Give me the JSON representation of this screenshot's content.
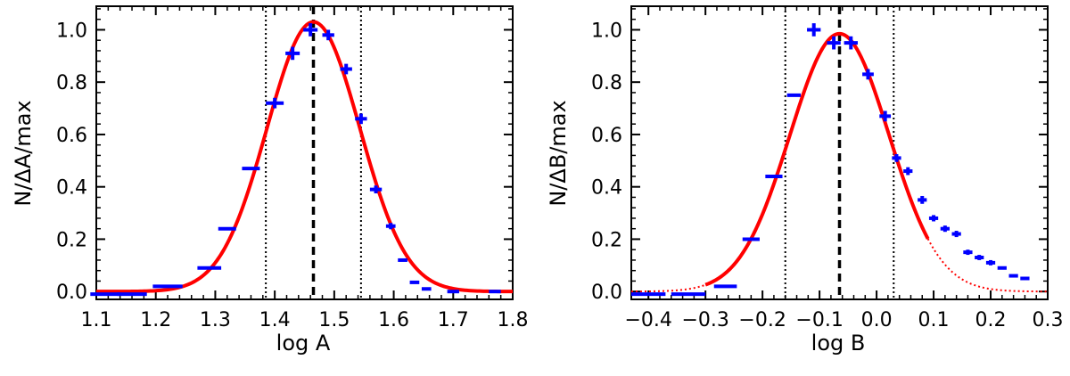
{
  "chart_data": [
    {
      "type": "scatter",
      "xlabel": "log A",
      "ylabel": "N/ΔA/max",
      "xlim": [
        1.1,
        1.8
      ],
      "ylim": [
        -0.03,
        1.09
      ],
      "xticks": [
        "1.1",
        "1.2",
        "1.3",
        "1.4",
        "1.5",
        "1.6",
        "1.7",
        "1.8"
      ],
      "yticks": [
        "0.0",
        "0.2",
        "0.4",
        "0.6",
        "0.8",
        "1.0"
      ],
      "grid": false,
      "colors": {
        "points": "#0000ff",
        "fit": "#ff0000",
        "markers": "#000000"
      },
      "series": [
        {
          "type": "errorbar",
          "x": [
            1.115,
            1.16,
            1.22,
            1.29,
            1.32,
            1.36,
            1.4,
            1.43,
            1.46,
            1.49,
            1.52,
            1.545,
            1.57,
            1.595,
            1.615,
            1.635,
            1.655,
            1.7,
            1.77
          ],
          "y": [
            -0.01,
            -0.01,
            0.02,
            0.09,
            0.24,
            0.47,
            0.72,
            0.91,
            1.0,
            0.98,
            0.85,
            0.66,
            0.39,
            0.25,
            0.12,
            0.035,
            0.01,
            0.0,
            0.0
          ],
          "xerr": [
            0.025,
            0.025,
            0.025,
            0.02,
            0.015,
            0.015,
            0.015,
            0.012,
            0.012,
            0.01,
            0.01,
            0.01,
            0.01,
            0.008,
            0.008,
            0.008,
            0.008,
            0.01,
            0.01
          ],
          "yerr": [
            0,
            0,
            0,
            0,
            0,
            0,
            0.02,
            0.025,
            0.025,
            0.02,
            0.02,
            0.02,
            0.015,
            0.012,
            0,
            0,
            0,
            0,
            0
          ]
        },
        {
          "type": "gaussian_fit",
          "amplitude": 1.03,
          "mean": 1.465,
          "sigma": 0.078,
          "x_range": [
            1.1,
            1.8
          ]
        }
      ],
      "vlines": [
        {
          "x": 1.465,
          "style": "dashed"
        },
        {
          "x": 1.385,
          "style": "dotted"
        },
        {
          "x": 1.545,
          "style": "dotted"
        }
      ]
    },
    {
      "type": "scatter",
      "xlabel": "log B",
      "ylabel": "N/ΔB/max",
      "xlim": [
        -0.43,
        0.3
      ],
      "ylim": [
        -0.03,
        1.09
      ],
      "xticks": [
        "−0.4",
        "−0.3",
        "−0.2",
        "−0.1",
        "0.0",
        "0.1",
        "0.2",
        "0.3"
      ],
      "yticks": [
        "0.0",
        "0.2",
        "0.4",
        "0.6",
        "0.8",
        "1.0"
      ],
      "grid": false,
      "colors": {
        "points": "#0000ff",
        "fit": "#ff0000",
        "markers": "#000000"
      },
      "series": [
        {
          "type": "errorbar",
          "x": [
            -0.4,
            -0.33,
            -0.265,
            -0.22,
            -0.18,
            -0.145,
            -0.11,
            -0.075,
            -0.045,
            -0.015,
            0.015,
            0.035,
            0.055,
            0.08,
            0.1,
            0.12,
            0.14,
            0.16,
            0.18,
            0.2,
            0.22,
            0.24,
            0.26
          ],
          "y": [
            -0.01,
            -0.01,
            0.02,
            0.2,
            0.44,
            0.75,
            1.0,
            0.95,
            0.95,
            0.83,
            0.67,
            0.51,
            0.46,
            0.35,
            0.28,
            0.24,
            0.22,
            0.15,
            0.13,
            0.11,
            0.09,
            0.06,
            0.05
          ],
          "xerr": [
            0.03,
            0.03,
            0.02,
            0.015,
            0.015,
            0.012,
            0.012,
            0.012,
            0.012,
            0.01,
            0.01,
            0.008,
            0.008,
            0.008,
            0.008,
            0.008,
            0.008,
            0.008,
            0.008,
            0.008,
            0.008,
            0.008,
            0.008
          ],
          "yerr": [
            0,
            0,
            0,
            0,
            0,
            0,
            0.025,
            0.025,
            0.025,
            0.02,
            0.02,
            0.015,
            0.015,
            0.015,
            0.012,
            0.012,
            0.012,
            0.01,
            0.01,
            0.01,
            0,
            0,
            0
          ]
        },
        {
          "type": "gaussian_fit",
          "amplitude": 0.985,
          "mean": -0.065,
          "sigma": 0.087,
          "x_range": [
            -0.43,
            0.3
          ],
          "solid_range": [
            -0.3,
            0.09
          ]
        }
      ],
      "vlines": [
        {
          "x": -0.065,
          "style": "dashed"
        },
        {
          "x": -0.16,
          "style": "dotted"
        },
        {
          "x": 0.03,
          "style": "dotted"
        }
      ]
    }
  ]
}
